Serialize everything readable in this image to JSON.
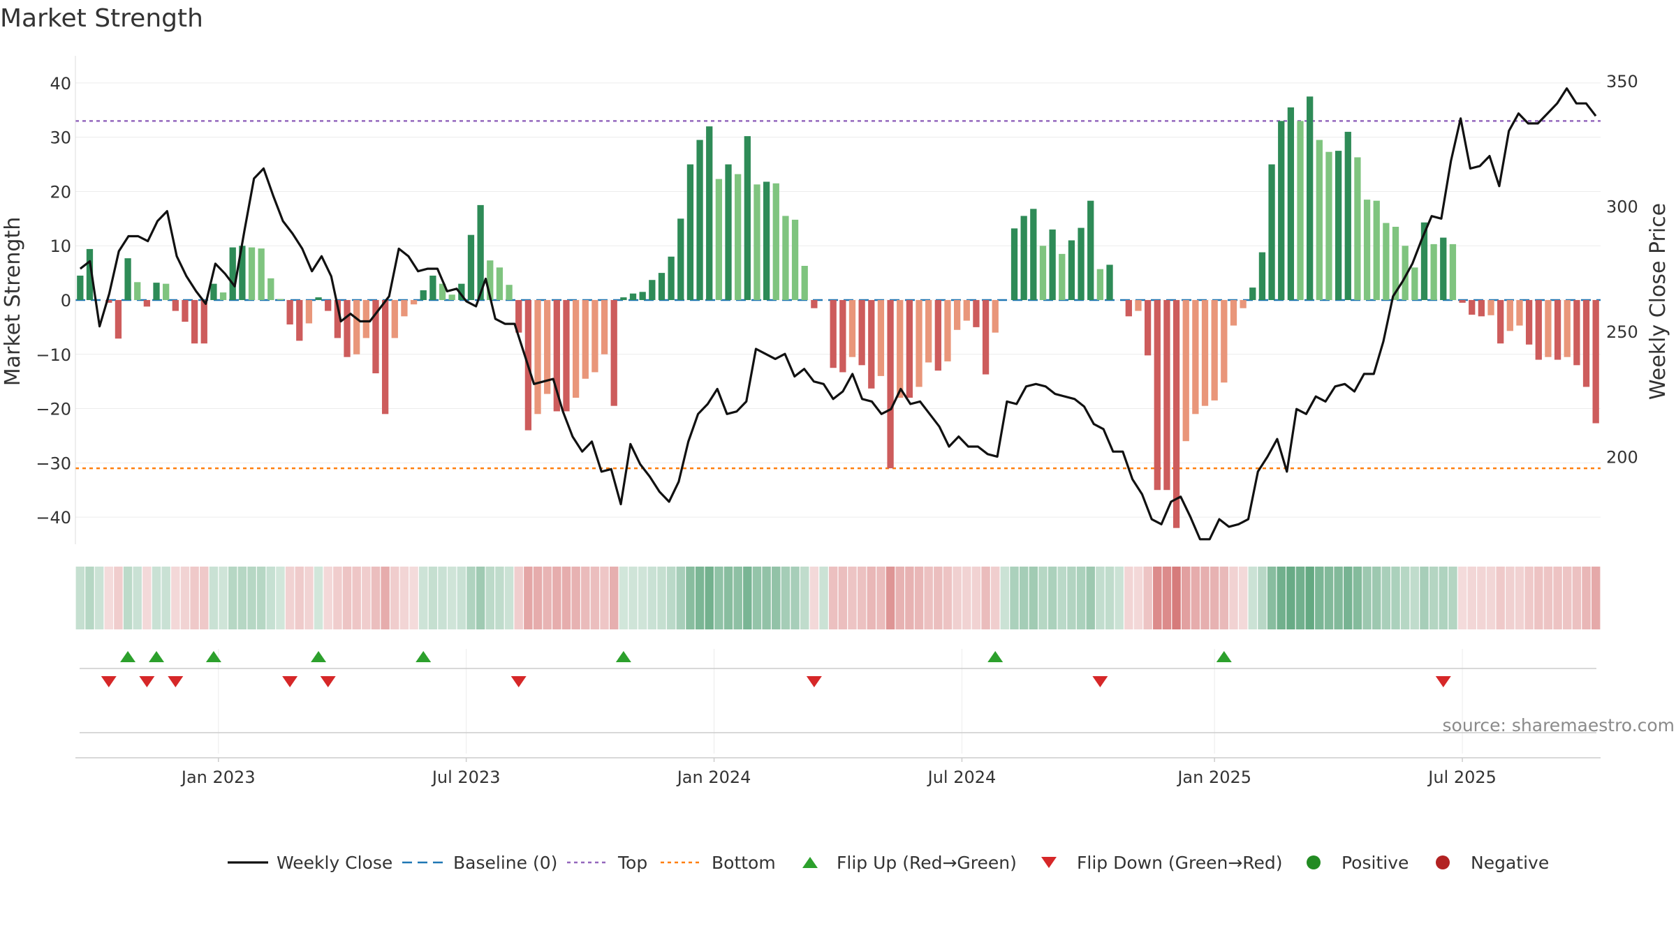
{
  "chart_data": {
    "type": "bar+line",
    "title": "Market Strength",
    "ylabel_left": "Market Strength",
    "ylabel_right": "Weekly Close Price",
    "source": "source: sharemaestro.com",
    "ylim_left": [
      -45,
      45
    ],
    "yticks_left": [
      {
        "value": 40,
        "label": "40"
      },
      {
        "value": 30,
        "label": "30"
      },
      {
        "value": 20,
        "label": "20"
      },
      {
        "value": 10,
        "label": "10"
      },
      {
        "value": 0,
        "label": "0"
      },
      {
        "value": -10,
        "label": "−10"
      },
      {
        "value": -20,
        "label": "−20"
      },
      {
        "value": -30,
        "label": "−30"
      },
      {
        "value": -40,
        "label": "−40"
      }
    ],
    "ylim_right": [
      165,
      360
    ],
    "yticks_right": [
      {
        "value": 350,
        "label": "350"
      },
      {
        "value": 300,
        "label": "300"
      },
      {
        "value": 250,
        "label": "250"
      },
      {
        "value": 200,
        "label": "200"
      }
    ],
    "xlim": [
      0,
      156
    ],
    "xticks": [
      {
        "week": 14.5,
        "label": "Jan 2023"
      },
      {
        "week": 40.5,
        "label": "Jul 2023"
      },
      {
        "week": 66.5,
        "label": "Jan 2024"
      },
      {
        "week": 92.5,
        "label": "Jul 2024"
      },
      {
        "week": 119,
        "label": "Jan 2025"
      },
      {
        "week": 145,
        "label": "Jul 2025"
      }
    ],
    "top_line": 33,
    "bottom_line": -31,
    "colors": {
      "green_strong": "#2e8b57",
      "green_light": "#7fc47f",
      "red_strong": "#cd5c5c",
      "red_light": "#e9967a",
      "close": "#111111",
      "baseline": "#1f77b4",
      "top": "#9467bd",
      "bottom": "#ff7f0e",
      "flip_up": "#2ca02c",
      "flip_down": "#d62728",
      "positive": "#228b22",
      "negative": "#b22222"
    },
    "strength": [
      4.5,
      9.4,
      0,
      -0.5,
      -7.1,
      7.7,
      3.3,
      -1.2,
      3.2,
      3.0,
      -2.0,
      -4.0,
      -8.0,
      -8.0,
      3.0,
      1.4,
      9.7,
      10.0,
      9.7,
      9.5,
      4.0,
      0.2,
      -4.5,
      -7.5,
      -4.3,
      0.5,
      -2.0,
      -7.0,
      -10.5,
      -10.0,
      -7.0,
      -13.5,
      -21.0,
      -7.0,
      -3.0,
      -0.8,
      1.8,
      4.5,
      3.0,
      1.0,
      3.0,
      12.0,
      17.5,
      7.3,
      6.0,
      2.8,
      -6.0,
      -24.0,
      -21.0,
      -17.3,
      -20.5,
      -20.5,
      -18.0,
      -14.5,
      -13.3,
      -10.0,
      -19.5,
      0.5,
      1.2,
      1.5,
      3.7,
      5.0,
      8.0,
      15.0,
      25.0,
      29.5,
      32.0,
      22.3,
      25.0,
      23.2,
      30.2,
      21.3,
      21.8,
      21.5,
      15.5,
      14.8,
      6.3,
      -1.5,
      0,
      -12.5,
      -13.3,
      -10.5,
      -12.0,
      -16.3,
      -14.0,
      -31.0,
      -18.0,
      -18.0,
      -16.0,
      -11.5,
      -13.0,
      -11.3,
      -5.5,
      -3.8,
      -5.0,
      -13.7,
      -6.0,
      0,
      13.2,
      15.5,
      16.8,
      10.0,
      13.0,
      8.5,
      11.0,
      13.3,
      18.3,
      5.7,
      6.5,
      0,
      -3.0,
      -2.0,
      -10.2,
      -35.0,
      -35.0,
      -42.0,
      -26.0,
      -21.0,
      -19.5,
      -18.5,
      -15.2,
      -4.7,
      -1.5,
      2.3,
      8.8,
      25.0,
      33.0,
      35.5,
      33.0,
      37.5,
      29.5,
      27.3,
      27.5,
      31.0,
      26.3,
      18.5,
      18.3,
      14.2,
      13.5,
      10.0,
      6.0,
      14.3,
      10.3,
      11.5,
      10.3,
      -0.5,
      -2.7,
      -3.0,
      -2.8,
      -8.0,
      -5.7,
      -4.7,
      -8.2,
      -11.0,
      -10.5,
      -11.0,
      -10.5,
      -12.0,
      -16.0,
      -22.7
    ],
    "close": [
      {
        "week": 0,
        "price": 275
      },
      {
        "week": 1,
        "price": 278
      },
      {
        "week": 2,
        "price": 252
      },
      {
        "week": 3,
        "price": 265
      },
      {
        "week": 4,
        "price": 282
      },
      {
        "week": 5,
        "price": 288
      },
      {
        "week": 6,
        "price": 288
      },
      {
        "week": 7,
        "price": 286
      },
      {
        "week": 8,
        "price": 294
      },
      {
        "week": 9,
        "price": 298
      },
      {
        "week": 10,
        "price": 280
      },
      {
        "week": 11,
        "price": 272
      },
      {
        "week": 12,
        "price": 266
      },
      {
        "week": 13,
        "price": 261
      },
      {
        "week": 14,
        "price": 277
      },
      {
        "week": 15,
        "price": 273
      },
      {
        "week": 16,
        "price": 268
      },
      {
        "week": 17,
        "price": 290
      },
      {
        "week": 18,
        "price": 311
      },
      {
        "week": 19,
        "price": 315
      },
      {
        "week": 20,
        "price": 304
      },
      {
        "week": 21,
        "price": 294
      },
      {
        "week": 22,
        "price": 289
      },
      {
        "week": 23,
        "price": 283
      },
      {
        "week": 24,
        "price": 274
      },
      {
        "week": 25,
        "price": 280
      },
      {
        "week": 26,
        "price": 272
      },
      {
        "week": 27,
        "price": 254
      },
      {
        "week": 28,
        "price": 257
      },
      {
        "week": 29,
        "price": 254
      },
      {
        "week": 30,
        "price": 254
      },
      {
        "week": 31,
        "price": 259
      },
      {
        "week": 32,
        "price": 264
      },
      {
        "week": 33,
        "price": 283
      },
      {
        "week": 34,
        "price": 280
      },
      {
        "week": 35,
        "price": 274
      },
      {
        "week": 36,
        "price": 275
      },
      {
        "week": 37,
        "price": 275
      },
      {
        "week": 38,
        "price": 266
      },
      {
        "week": 39,
        "price": 267
      },
      {
        "week": 40,
        "price": 262
      },
      {
        "week": 41,
        "price": 260
      },
      {
        "week": 42,
        "price": 271
      },
      {
        "week": 43,
        "price": 255
      },
      {
        "week": 44,
        "price": 253
      },
      {
        "week": 45,
        "price": 253
      },
      {
        "week": 46,
        "price": 241
      },
      {
        "week": 47,
        "price": 229
      },
      {
        "week": 48,
        "price": 230
      },
      {
        "week": 49,
        "price": 231
      },
      {
        "week": 50,
        "price": 218
      },
      {
        "week": 51,
        "price": 208
      },
      {
        "week": 52,
        "price": 202
      },
      {
        "week": 53,
        "price": 206
      },
      {
        "week": 54,
        "price": 194
      },
      {
        "week": 55,
        "price": 195
      },
      {
        "week": 56,
        "price": 181
      },
      {
        "week": 57,
        "price": 205
      },
      {
        "week": 58,
        "price": 197
      },
      {
        "week": 59,
        "price": 192
      },
      {
        "week": 60,
        "price": 186
      },
      {
        "week": 61,
        "price": 182
      },
      {
        "week": 62,
        "price": 190
      },
      {
        "week": 63,
        "price": 206
      },
      {
        "week": 64,
        "price": 217
      },
      {
        "week": 65,
        "price": 221
      },
      {
        "week": 66,
        "price": 227
      },
      {
        "week": 67,
        "price": 217
      },
      {
        "week": 68,
        "price": 218
      },
      {
        "week": 69,
        "price": 222
      },
      {
        "week": 70,
        "price": 243
      },
      {
        "week": 71,
        "price": 241
      },
      {
        "week": 72,
        "price": 239
      },
      {
        "week": 73,
        "price": 241
      },
      {
        "week": 74,
        "price": 232
      },
      {
        "week": 75,
        "price": 235
      },
      {
        "week": 76,
        "price": 230
      },
      {
        "week": 77,
        "price": 229
      },
      {
        "week": 78,
        "price": 223
      },
      {
        "week": 79,
        "price": 226
      },
      {
        "week": 80,
        "price": 233
      },
      {
        "week": 81,
        "price": 223
      },
      {
        "week": 82,
        "price": 222
      },
      {
        "week": 83,
        "price": 217
      },
      {
        "week": 84,
        "price": 219
      },
      {
        "week": 85,
        "price": 227
      },
      {
        "week": 86,
        "price": 221
      },
      {
        "week": 87,
        "price": 222
      },
      {
        "week": 88,
        "price": 217
      },
      {
        "week": 89,
        "price": 212
      },
      {
        "week": 90,
        "price": 204
      },
      {
        "week": 91,
        "price": 208
      },
      {
        "week": 92,
        "price": 204
      },
      {
        "week": 93,
        "price": 204
      },
      {
        "week": 94,
        "price": 201
      },
      {
        "week": 95,
        "price": 200
      },
      {
        "week": 96,
        "price": 222
      },
      {
        "week": 97,
        "price": 221
      },
      {
        "week": 98,
        "price": 228
      },
      {
        "week": 99,
        "price": 229
      },
      {
        "week": 100,
        "price": 228
      },
      {
        "week": 101,
        "price": 225
      },
      {
        "week": 102,
        "price": 224
      },
      {
        "week": 103,
        "price": 223
      },
      {
        "week": 104,
        "price": 220
      },
      {
        "week": 105,
        "price": 213
      },
      {
        "week": 106,
        "price": 211
      },
      {
        "week": 107,
        "price": 202
      },
      {
        "week": 108,
        "price": 202
      },
      {
        "week": 109,
        "price": 191
      },
      {
        "week": 110,
        "price": 185
      },
      {
        "week": 111,
        "price": 175
      },
      {
        "week": 112,
        "price": 173
      },
      {
        "week": 113,
        "price": 182
      },
      {
        "week": 114,
        "price": 184
      },
      {
        "week": 115,
        "price": 176
      },
      {
        "week": 116,
        "price": 167
      },
      {
        "week": 117,
        "price": 167
      },
      {
        "week": 118,
        "price": 175
      },
      {
        "week": 119,
        "price": 172
      },
      {
        "week": 120,
        "price": 173
      },
      {
        "week": 121,
        "price": 175
      },
      {
        "week": 122,
        "price": 194
      },
      {
        "week": 123,
        "price": 200
      },
      {
        "week": 124,
        "price": 207
      },
      {
        "week": 125,
        "price": 194
      },
      {
        "week": 126,
        "price": 219
      },
      {
        "week": 127,
        "price": 217
      },
      {
        "week": 128,
        "price": 224
      },
      {
        "week": 129,
        "price": 222
      },
      {
        "week": 130,
        "price": 228
      },
      {
        "week": 131,
        "price": 229
      },
      {
        "week": 132,
        "price": 226
      },
      {
        "week": 133,
        "price": 233
      },
      {
        "week": 134,
        "price": 233
      },
      {
        "week": 135,
        "price": 246
      },
      {
        "week": 136,
        "price": 264
      },
      {
        "week": 137,
        "price": 270
      },
      {
        "week": 138,
        "price": 277
      },
      {
        "week": 139,
        "price": 287
      },
      {
        "week": 140,
        "price": 296
      },
      {
        "week": 141,
        "price": 295
      },
      {
        "week": 142,
        "price": 318
      },
      {
        "week": 143,
        "price": 335
      },
      {
        "week": 144,
        "price": 315
      },
      {
        "week": 145,
        "price": 316
      },
      {
        "week": 146,
        "price": 320
      },
      {
        "week": 147,
        "price": 308
      },
      {
        "week": 148,
        "price": 330
      },
      {
        "week": 149,
        "price": 337
      },
      {
        "week": 150,
        "price": 333
      },
      {
        "week": 151,
        "price": 333
      },
      {
        "week": 152,
        "price": 337
      },
      {
        "week": 153,
        "price": 341
      },
      {
        "week": 154,
        "price": 347
      },
      {
        "week": 155,
        "price": 341
      },
      {
        "week": 156,
        "price": 341
      },
      {
        "week": 157,
        "price": 336
      }
    ],
    "flips_up": [
      5,
      8,
      14,
      25,
      36,
      57,
      96,
      120
    ],
    "flips_down": [
      3,
      7,
      10,
      22,
      26,
      46,
      77,
      107,
      143
    ],
    "legend": [
      {
        "kind": "line",
        "label": "Weekly Close"
      },
      {
        "kind": "baseline",
        "label": "Baseline (0)"
      },
      {
        "kind": "top",
        "label": "Top"
      },
      {
        "kind": "bottom",
        "label": "Bottom"
      },
      {
        "kind": "flip-up",
        "label": "Flip Up (Red→Green)"
      },
      {
        "kind": "flip-down",
        "label": "Flip Down (Green→Red)"
      },
      {
        "kind": "positive",
        "label": "Positive"
      },
      {
        "kind": "negative",
        "label": "Negative"
      }
    ]
  }
}
